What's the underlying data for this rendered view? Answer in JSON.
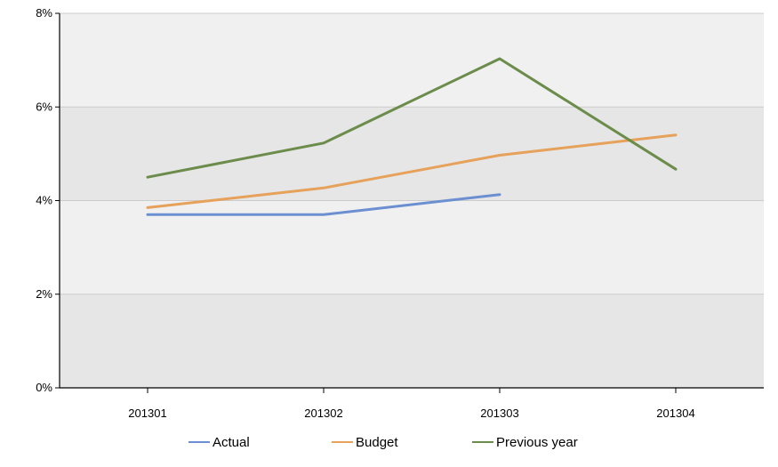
{
  "chart_data": {
    "type": "line",
    "title": "",
    "xlabel": "",
    "ylabel": "",
    "categories": [
      "201301",
      "201302",
      "201303",
      "201304"
    ],
    "y_tick_labels": [
      "0%",
      "2%",
      "4%",
      "6%",
      "8%"
    ],
    "ylim": [
      0,
      8
    ],
    "y_unit": "%",
    "grid": true,
    "legend_position": "bottom",
    "series": [
      {
        "name": "Actual",
        "color": "#6b8fd0",
        "values": [
          3.7,
          3.7,
          4.13,
          null
        ]
      },
      {
        "name": "Budget",
        "color": "#e6a15a",
        "values": [
          3.85,
          4.27,
          4.97,
          5.4
        ]
      },
      {
        "name": "Previous year",
        "color": "#6b8c4a",
        "values": [
          4.5,
          5.23,
          7.03,
          4.67
        ]
      }
    ],
    "colors": {
      "plot_band_light": "#f0f0f0",
      "plot_band_dark": "#e6e6e6",
      "gridline": "#cccccc",
      "axis": "#000000"
    }
  }
}
